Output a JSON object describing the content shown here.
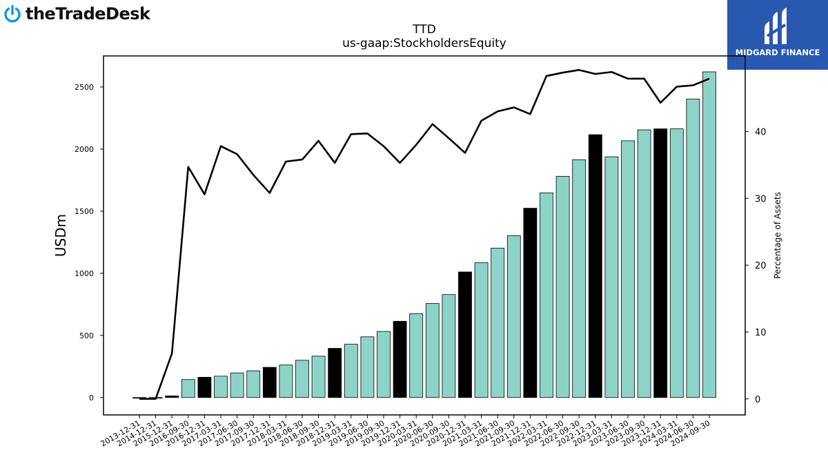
{
  "branding": {
    "left_logo_text": "theTradeDesk",
    "right_logo_text": "MIDGARD FINANCE",
    "right_logo_bg": "#2958b0"
  },
  "chart_data": {
    "type": "bar",
    "title": "TTD",
    "subtitle": "us-gaap:StockholdersEquity",
    "ylabel": "USDm",
    "y2label": "Percentage of Assets",
    "ylim": [
      -140,
      2750
    ],
    "y2lim": [
      -2.4,
      51.3
    ],
    "yticks": [
      0,
      500,
      1000,
      1500,
      2000,
      2500
    ],
    "y2ticks": [
      0,
      10,
      20,
      30,
      40
    ],
    "bar_colors": {
      "quarterly": "#8dd3c7",
      "annual": "#000000"
    },
    "line_color": "#000000",
    "categories": [
      "2013-12-31",
      "2014-12-31",
      "2015-12-31",
      "2016-09-30",
      "2016-12-31",
      "2017-03-31",
      "2017-06-30",
      "2017-09-30",
      "2017-12-31",
      "2018-03-31",
      "2018-06-30",
      "2018-09-30",
      "2018-12-31",
      "2019-03-31",
      "2019-06-30",
      "2019-09-30",
      "2019-12-31",
      "2020-03-31",
      "2020-06-30",
      "2020-09-30",
      "2020-12-31",
      "2021-03-31",
      "2021-06-30",
      "2021-09-30",
      "2021-12-31",
      "2022-03-31",
      "2022-06-30",
      "2022-09-30",
      "2022-12-31",
      "2023-03-31",
      "2023-06-30",
      "2023-09-30",
      "2023-12-31",
      "2024-03-31",
      "2024-06-30",
      "2024-09-30"
    ],
    "bar_types": [
      "annual",
      "annual",
      "annual",
      "quarterly",
      "annual",
      "quarterly",
      "quarterly",
      "quarterly",
      "annual",
      "quarterly",
      "quarterly",
      "quarterly",
      "annual",
      "quarterly",
      "quarterly",
      "quarterly",
      "annual",
      "quarterly",
      "quarterly",
      "quarterly",
      "annual",
      "quarterly",
      "quarterly",
      "quarterly",
      "annual",
      "quarterly",
      "quarterly",
      "quarterly",
      "annual",
      "quarterly",
      "quarterly",
      "quarterly",
      "annual",
      "quarterly",
      "quarterly",
      "quarterly"
    ],
    "series": [
      {
        "name": "StockholdersEquity",
        "axis": "left",
        "values": [
          -2,
          -3,
          13,
          145,
          163,
          172,
          198,
          215,
          243,
          262,
          300,
          333,
          396,
          429,
          489,
          532,
          614,
          675,
          757,
          829,
          1011,
          1085,
          1203,
          1303,
          1524,
          1648,
          1781,
          1914,
          2116,
          1938,
          2067,
          2155,
          2163,
          2163,
          2403,
          2622
        ]
      },
      {
        "name": "Percentage of Assets",
        "axis": "right",
        "values": [
          0.0,
          0.0,
          6.8,
          34.7,
          30.6,
          37.8,
          36.6,
          33.5,
          30.8,
          35.5,
          35.8,
          38.6,
          35.3,
          39.6,
          39.7,
          37.8,
          35.3,
          38.0,
          41.1,
          39.0,
          36.8,
          41.6,
          43.0,
          43.6,
          42.6,
          48.3,
          48.8,
          49.2,
          48.6,
          48.9,
          47.9,
          47.9,
          44.3,
          46.7,
          46.9,
          47.9
        ]
      }
    ]
  }
}
